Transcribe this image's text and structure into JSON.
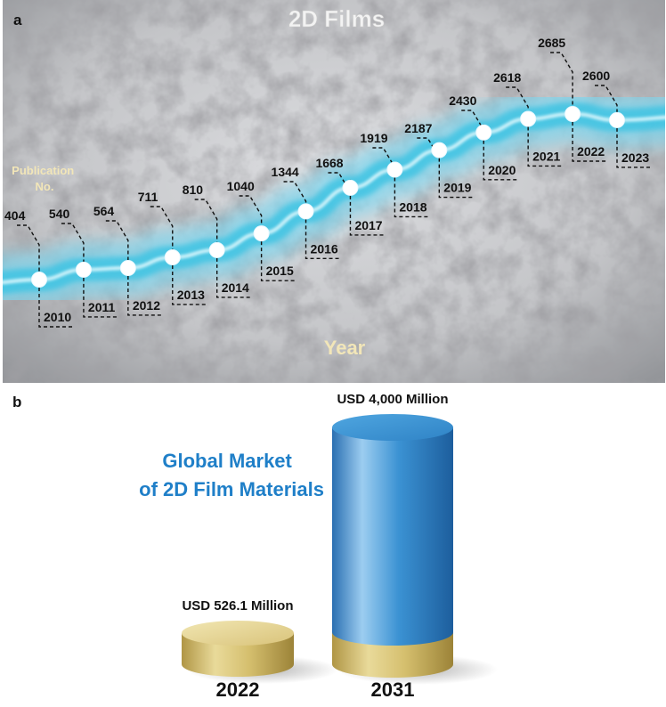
{
  "panel_a_label": "a",
  "panel_b_label": "b",
  "chart_data": [
    {
      "type": "line",
      "title": "2D Films",
      "xlabel": "Year",
      "ylabel": "Publication No.",
      "x": [
        "2010",
        "2011",
        "2012",
        "2013",
        "2014",
        "2015",
        "2016",
        "2017",
        "2018",
        "2019",
        "2020",
        "2021",
        "2022",
        "2023"
      ],
      "values": [
        404,
        540,
        564,
        711,
        810,
        1040,
        1344,
        1668,
        1919,
        2187,
        2430,
        2618,
        2685,
        2600
      ]
    },
    {
      "type": "bar",
      "title": "Global Market of 2D Film Materials",
      "title_lines": [
        "Global Market",
        "of 2D Film Materials"
      ],
      "categories": [
        "2022",
        "2031"
      ],
      "values": [
        526.1,
        4000
      ],
      "value_labels": [
        "USD 526.1 Million",
        "USD 4,000 Million"
      ]
    }
  ],
  "colors": {
    "river": "#3fc4e3",
    "cylinder_blue": "#3a8fd0",
    "cylinder_gold": "#d8c47a",
    "market_title": "#1f7fc8",
    "label_cream": "#f2e6b8"
  }
}
